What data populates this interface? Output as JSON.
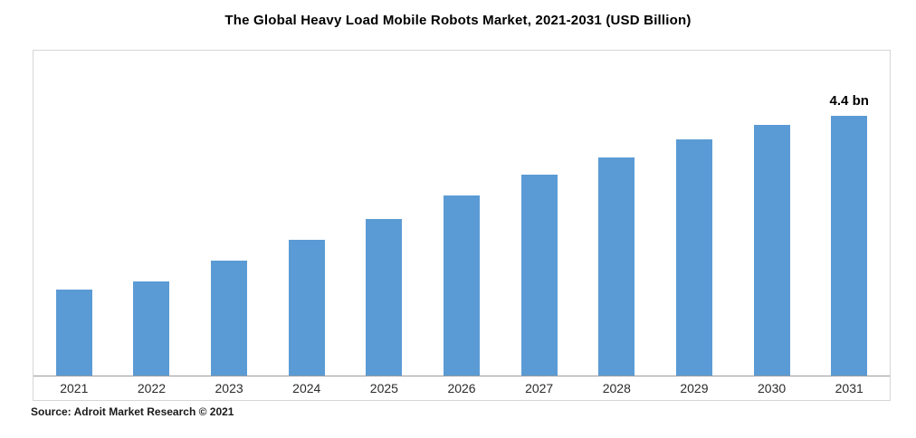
{
  "page_title": "The Global Heavy Load Mobile Robots Market, 2021-2031 (USD Billion)",
  "source_caption": "Source: Adroit Market Research © 2021",
  "chart_data": {
    "type": "bar",
    "title": "The Global Heavy Load Mobile Robots Market, 2021-2031 (USD Billion)",
    "categories": [
      "2021",
      "2022",
      "2023",
      "2024",
      "2025",
      "2026",
      "2027",
      "2028",
      "2029",
      "2030",
      "2031"
    ],
    "values": [
      1.45,
      1.6,
      1.95,
      2.3,
      2.65,
      3.05,
      3.4,
      3.7,
      4.0,
      4.25,
      4.4
    ],
    "xlabel": "",
    "ylabel": "USD Billion",
    "ylim": [
      0,
      5.5
    ],
    "bar_color": "#5b9bd5",
    "grid": false,
    "legend_position": "none",
    "annotation": {
      "category": "2031",
      "text": "4.4 bn"
    }
  }
}
